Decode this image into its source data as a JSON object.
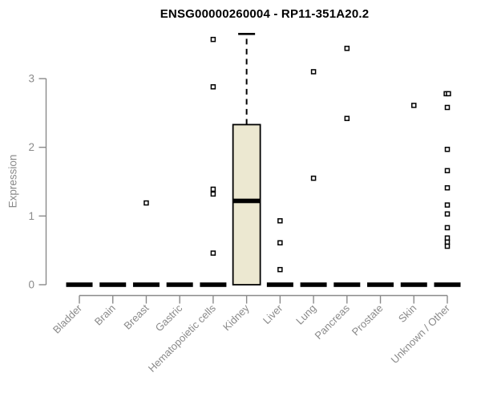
{
  "chart_data": {
    "type": "box",
    "title": "ENSG00000260004 - RP11-351A20.2",
    "ylabel": "Expression",
    "xlabel": "",
    "ylim": [
      0,
      3.75
    ],
    "yticks": [
      "0",
      "1",
      "2",
      "3"
    ],
    "grid": false,
    "legend": "none",
    "categories": [
      "Bladder",
      "Brain",
      "Breast",
      "Gastric",
      "Hematopoietic cells",
      "Kidney",
      "Liver",
      "Lung",
      "Pancreas",
      "Prostate",
      "Skin",
      "Unknown / Other"
    ],
    "boxes": [
      {
        "category": "Bladder",
        "q1": 0,
        "median": 0,
        "q3": 0,
        "outliers": []
      },
      {
        "category": "Brain",
        "q1": 0,
        "median": 0,
        "q3": 0,
        "outliers": []
      },
      {
        "category": "Breast",
        "q1": 0,
        "median": 0,
        "q3": 0,
        "outliers": [
          1.19
        ]
      },
      {
        "category": "Gastric",
        "q1": 0,
        "median": 0,
        "q3": 0,
        "outliers": []
      },
      {
        "category": "Hematopoietic cells",
        "q1": 0,
        "median": 0,
        "q3": 0,
        "outliers": [
          3.57,
          2.88,
          1.39,
          1.32,
          0.46
        ]
      },
      {
        "category": "Kidney",
        "q1": 0,
        "median": 1.22,
        "q3": 2.33,
        "whisker_high": 3.65,
        "outliers": []
      },
      {
        "category": "Liver",
        "q1": 0,
        "median": 0,
        "q3": 0,
        "outliers": [
          0.93,
          0.61,
          0.22
        ]
      },
      {
        "category": "Lung",
        "q1": 0,
        "median": 0,
        "q3": 0,
        "outliers": [
          3.1,
          1.55
        ]
      },
      {
        "category": "Pancreas",
        "q1": 0,
        "median": 0,
        "q3": 0,
        "outliers": [
          3.44,
          2.42
        ]
      },
      {
        "category": "Prostate",
        "q1": 0,
        "median": 0,
        "q3": 0,
        "outliers": []
      },
      {
        "category": "Skin",
        "q1": 0,
        "median": 0,
        "q3": 0,
        "outliers": [
          2.61
        ]
      },
      {
        "category": "Unknown / Other",
        "q1": 0,
        "median": 0,
        "q3": 0,
        "outliers": [
          {
            "v": 2.78,
            "dx": -1.4
          },
          {
            "v": 2.78,
            "dx": 1.4
          },
          2.58,
          1.97,
          1.66,
          1.41,
          1.16,
          1.03,
          0.83,
          0.68,
          0.62,
          0.56
        ]
      }
    ],
    "colors": {
      "box_fill": "#ece8d1",
      "box_border": "#000000",
      "median": "#000000",
      "whisker": "#000000",
      "outlier_fill": "#ffffff",
      "outlier_border": "#000000",
      "axis": "#8a8a8a",
      "tick_label": "#8a8a8a",
      "title": "#000000",
      "background": "#ffffff"
    }
  }
}
